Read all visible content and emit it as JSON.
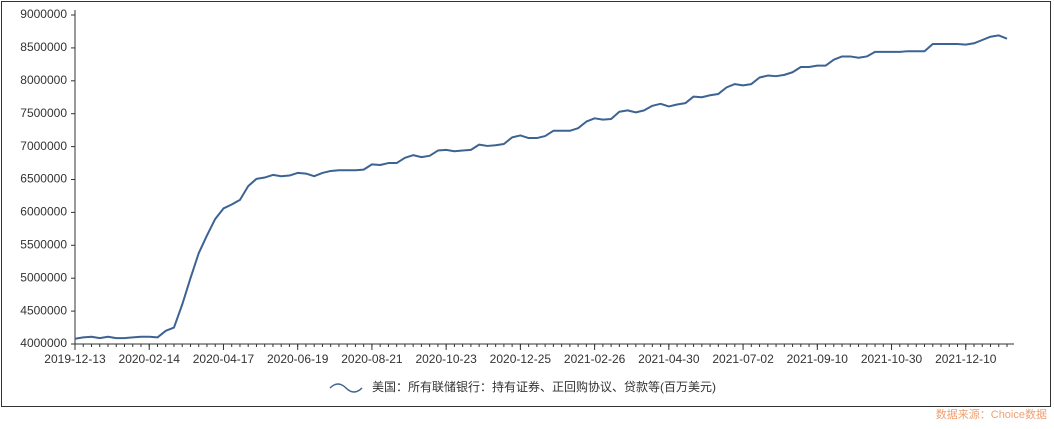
{
  "chart_data": {
    "type": "line",
    "categories": [
      "2019-12-13",
      null,
      null,
      null,
      null,
      null,
      null,
      null,
      null,
      "2020-02-14",
      null,
      null,
      null,
      null,
      null,
      null,
      null,
      null,
      "2020-04-17",
      null,
      null,
      null,
      null,
      null,
      null,
      null,
      null,
      "2020-06-19",
      null,
      null,
      null,
      null,
      null,
      null,
      null,
      null,
      "2020-08-21",
      null,
      null,
      null,
      null,
      null,
      null,
      null,
      null,
      "2020-10-23",
      null,
      null,
      null,
      null,
      null,
      null,
      null,
      null,
      "2020-12-25",
      null,
      null,
      null,
      null,
      null,
      null,
      null,
      null,
      "2021-02-26",
      null,
      null,
      null,
      null,
      null,
      null,
      null,
      null,
      "2021-04-30",
      null,
      null,
      null,
      null,
      null,
      null,
      null,
      null,
      "2021-07-02",
      null,
      null,
      null,
      null,
      null,
      null,
      null,
      null,
      "2021-09-10",
      null,
      null,
      null,
      null,
      null,
      null,
      null,
      null,
      "2021-10-30",
      null,
      null,
      null,
      null,
      null,
      null,
      null,
      null,
      "2021-12-10",
      null,
      null,
      null,
      null,
      null
    ],
    "series": [
      {
        "name": "美国：所有联储银行：持有证券、正回购协议、贷款等(百万美元)",
        "color": "#3d6393",
        "values": [
          4080000,
          4100000,
          4110000,
          4090000,
          4110000,
          4090000,
          4090000,
          4100000,
          4110000,
          4110000,
          4100000,
          4200000,
          4250000,
          4600000,
          5000000,
          5380000,
          5650000,
          5900000,
          6060000,
          6120000,
          6190000,
          6400000,
          6510000,
          6530000,
          6570000,
          6550000,
          6560000,
          6600000,
          6590000,
          6550000,
          6600000,
          6630000,
          6640000,
          6640000,
          6640000,
          6650000,
          6730000,
          6720000,
          6750000,
          6750000,
          6830000,
          6870000,
          6840000,
          6860000,
          6940000,
          6950000,
          6930000,
          6940000,
          6950000,
          7030000,
          7010000,
          7020000,
          7040000,
          7140000,
          7170000,
          7130000,
          7130000,
          7160000,
          7240000,
          7240000,
          7240000,
          7280000,
          7380000,
          7430000,
          7410000,
          7420000,
          7530000,
          7550000,
          7520000,
          7550000,
          7620000,
          7650000,
          7610000,
          7640000,
          7660000,
          7760000,
          7750000,
          7780000,
          7800000,
          7900000,
          7950000,
          7930000,
          7950000,
          8050000,
          8080000,
          8070000,
          8090000,
          8130000,
          8210000,
          8210000,
          8230000,
          8230000,
          8320000,
          8370000,
          8370000,
          8350000,
          8370000,
          8440000,
          8440000,
          8440000,
          8440000,
          8450000,
          8450000,
          8450000,
          8560000,
          8560000,
          8560000,
          8560000,
          8550000,
          8570000,
          8620000,
          8670000,
          8690000,
          8640000
        ]
      }
    ],
    "ylim": [
      4000000,
      9000000
    ],
    "yticks": [
      4000000,
      4500000,
      5000000,
      5500000,
      6000000,
      6500000,
      7000000,
      7500000,
      8000000,
      8500000,
      9000000
    ],
    "legend": "bottom",
    "source": "数据来源：Choice数据"
  }
}
